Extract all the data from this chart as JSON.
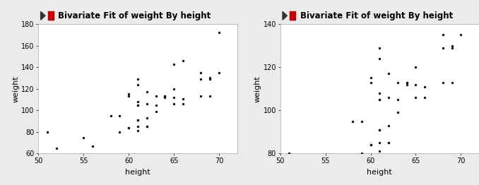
{
  "title": "Bivariate Fit of weight By height",
  "xlabel": "height",
  "ylabel": "weight",
  "points": [
    [
      51,
      80
    ],
    [
      52,
      65
    ],
    [
      55,
      75
    ],
    [
      56,
      67
    ],
    [
      58,
      95
    ],
    [
      59,
      95
    ],
    [
      59,
      80
    ],
    [
      60,
      115
    ],
    [
      60,
      113
    ],
    [
      60,
      84
    ],
    [
      60,
      84
    ],
    [
      61,
      129
    ],
    [
      61,
      124
    ],
    [
      61,
      108
    ],
    [
      61,
      105
    ],
    [
      61,
      105
    ],
    [
      61,
      91
    ],
    [
      61,
      91
    ],
    [
      61,
      85
    ],
    [
      61,
      81
    ],
    [
      62,
      117
    ],
    [
      62,
      106
    ],
    [
      62,
      93
    ],
    [
      62,
      85
    ],
    [
      62,
      85
    ],
    [
      63,
      113
    ],
    [
      63,
      105
    ],
    [
      63,
      99
    ],
    [
      64,
      113
    ],
    [
      64,
      113
    ],
    [
      64,
      112
    ],
    [
      65,
      143
    ],
    [
      65,
      120
    ],
    [
      65,
      112
    ],
    [
      65,
      106
    ],
    [
      66,
      146
    ],
    [
      66,
      111
    ],
    [
      66,
      106
    ],
    [
      68,
      135
    ],
    [
      68,
      129
    ],
    [
      68,
      113
    ],
    [
      69,
      130
    ],
    [
      69,
      129
    ],
    [
      69,
      113
    ],
    [
      70,
      172
    ],
    [
      70,
      135
    ]
  ],
  "plot1_xlim": [
    50,
    72
  ],
  "plot1_ylim": [
    60,
    180
  ],
  "plot1_xticks": [
    50,
    55,
    60,
    65,
    70
  ],
  "plot1_yticks": [
    60,
    80,
    100,
    120,
    140,
    160,
    180
  ],
  "plot2_xlim": [
    50,
    72
  ],
  "plot2_ylim": [
    80,
    140
  ],
  "plot2_xticks": [
    50,
    55,
    60,
    65,
    70
  ],
  "plot2_yticks": [
    80,
    100,
    120,
    140
  ],
  "dot_color": "#111111",
  "dot_size": 6,
  "bg_color": "#ffffff",
  "panel_bg": "#ebebeb",
  "header_bg": "#e0e0e0",
  "title_fontsize": 8.5,
  "axis_fontsize": 8,
  "tick_fontsize": 7,
  "icon_triangle_color": "#333333",
  "icon_red_color": "#cc0000",
  "spine_color": "#aaaaaa"
}
